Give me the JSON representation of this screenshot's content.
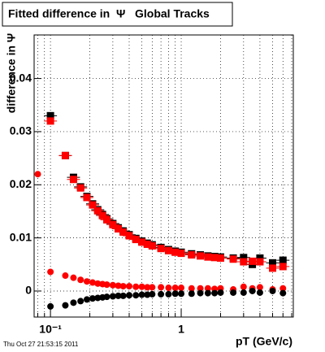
{
  "chart_data": {
    "type": "scatter",
    "title": "Fitted difference in  Ψ   Global Tracks",
    "y_label": "difference in Ψ",
    "x_label": "pT (GeV/c)",
    "timestamp": "Thu Oct 27 21:53:15 2011",
    "x_log": true,
    "grid": true,
    "xlim": [
      0.075,
      7.2
    ],
    "ylim": [
      -0.0049,
      0.0482
    ],
    "xticks": [
      {
        "value": 0.1,
        "label": "10⁻¹"
      },
      1
    ],
    "x_minor_ticks": [
      0.08,
      0.09,
      0.2,
      0.3,
      0.4,
      0.5,
      0.6,
      0.7,
      0.8,
      0.9,
      2,
      3,
      4,
      5,
      6,
      7
    ],
    "yticks": [
      0,
      0.01,
      0.02,
      0.03,
      0.04
    ],
    "series": [
      {
        "name": "black squares",
        "color": "#000000",
        "marker": "square",
        "x": [
          0.1,
          0.13,
          0.15,
          0.17,
          0.19,
          0.21,
          0.23,
          0.25,
          0.27,
          0.3,
          0.33,
          0.36,
          0.4,
          0.45,
          0.5,
          0.55,
          0.6,
          0.7,
          0.8,
          0.9,
          1.0,
          1.2,
          1.4,
          1.6,
          1.8,
          2.0,
          2.5,
          3.0,
          3.5,
          4.0,
          5.0,
          6.0
        ],
        "values": [
          0.033,
          0.0255,
          0.0214,
          0.0196,
          0.0178,
          0.0164,
          0.0153,
          0.0144,
          0.0136,
          0.0127,
          0.0119,
          0.0113,
          0.0106,
          0.0099,
          0.0094,
          0.009,
          0.0087,
          0.0082,
          0.0078,
          0.0075,
          0.0073,
          0.007,
          0.0068,
          0.0066,
          0.0065,
          0.0064,
          0.0062,
          0.0063,
          0.005,
          0.0062,
          0.0053,
          0.0058
        ]
      },
      {
        "name": "red squares",
        "color": "#ff0000",
        "marker": "square",
        "x": [
          0.1,
          0.13,
          0.15,
          0.17,
          0.19,
          0.21,
          0.23,
          0.25,
          0.27,
          0.3,
          0.33,
          0.36,
          0.4,
          0.45,
          0.5,
          0.55,
          0.6,
          0.7,
          0.8,
          0.9,
          1.0,
          1.2,
          1.4,
          1.6,
          1.8,
          2.0,
          2.5,
          3.0,
          3.5,
          4.0,
          5.0,
          6.0
        ],
        "values": [
          0.032,
          0.0255,
          0.021,
          0.0194,
          0.0176,
          0.0162,
          0.0151,
          0.0142,
          0.0134,
          0.0125,
          0.0117,
          0.0111,
          0.0104,
          0.0097,
          0.0092,
          0.0088,
          0.0085,
          0.008,
          0.0076,
          0.0073,
          0.0071,
          0.0068,
          0.0066,
          0.0064,
          0.0063,
          0.0062,
          0.006,
          0.0055,
          0.0056,
          0.0055,
          0.0043,
          0.0046
        ]
      },
      {
        "name": "red circles",
        "color": "#ff0000",
        "marker": "circle",
        "x": [
          0.08,
          0.1,
          0.13,
          0.15,
          0.17,
          0.19,
          0.21,
          0.23,
          0.25,
          0.27,
          0.3,
          0.33,
          0.36,
          0.4,
          0.45,
          0.5,
          0.55,
          0.6,
          0.7,
          0.8,
          0.9,
          1.0,
          1.2,
          1.4,
          1.6,
          1.8,
          2.0,
          2.5,
          3.0,
          3.5,
          4.0,
          5.0,
          6.0
        ],
        "values": [
          0.022,
          0.0036,
          0.0029,
          0.0025,
          0.0021,
          0.0018,
          0.0016,
          0.0014,
          0.0013,
          0.0012,
          0.0011,
          0.001,
          0.0009,
          0.0009,
          0.0008,
          0.0008,
          0.0007,
          0.0007,
          0.0007,
          0.0006,
          0.0006,
          0.0006,
          0.0005,
          0.0005,
          0.0005,
          0.0004,
          0.0005,
          0.0003,
          0.0008,
          0.0005,
          0.0007,
          0.0003,
          0.0005
        ]
      },
      {
        "name": "black circles",
        "color": "#000000",
        "marker": "circle",
        "x": [
          0.1,
          0.13,
          0.15,
          0.17,
          0.19,
          0.21,
          0.23,
          0.25,
          0.27,
          0.3,
          0.33,
          0.36,
          0.4,
          0.45,
          0.5,
          0.55,
          0.6,
          0.7,
          0.8,
          0.9,
          1.0,
          1.2,
          1.4,
          1.6,
          1.8,
          2.0,
          2.5,
          3.0,
          3.5,
          4.0,
          5.0,
          6.0
        ],
        "values": [
          -0.0029,
          -0.0027,
          -0.0022,
          -0.0019,
          -0.0016,
          -0.0014,
          -0.0013,
          -0.0012,
          -0.0011,
          -0.001,
          -0.0009,
          -0.0009,
          -0.0008,
          -0.0008,
          -0.0007,
          -0.0007,
          -0.0006,
          -0.0006,
          -0.0006,
          -0.0005,
          -0.0005,
          -0.0005,
          -0.0004,
          -0.0004,
          -0.0004,
          -0.0003,
          -0.0003,
          -0.0003,
          0.0,
          -0.0003,
          0.0,
          -0.0004
        ]
      }
    ]
  }
}
